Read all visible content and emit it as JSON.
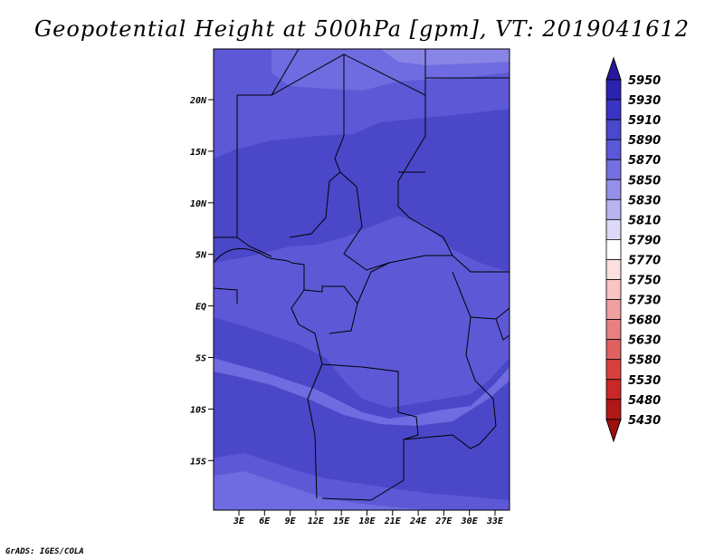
{
  "title": "Geopotential Height at 500hPa [gpm], VT: 2019041612",
  "credit": "GrADS: IGES/COLA",
  "map": {
    "lat_ticks": [
      "20N",
      "15N",
      "10N",
      "5N",
      "EQ",
      "5S",
      "10S",
      "15S"
    ],
    "lon_ticks": [
      "3E",
      "6E",
      "9E",
      "12E",
      "15E",
      "18E",
      "21E",
      "24E",
      "27E",
      "30E",
      "33E"
    ]
  },
  "colorbar": {
    "levels": [
      "5950",
      "5930",
      "5910",
      "5890",
      "5870",
      "5850",
      "5830",
      "5810",
      "5790",
      "5770",
      "5750",
      "5730",
      "5680",
      "5630",
      "5580",
      "5530",
      "5480",
      "5430"
    ],
    "colors": [
      "#2818a0",
      "#2c22b0",
      "#3a34c4",
      "#4a48cc",
      "#5a58d8",
      "#7470e0",
      "#9490ea",
      "#b8b4f2",
      "#dcdaf8",
      "#ffffff",
      "#fce0e0",
      "#f8c4c4",
      "#f0a0a0",
      "#e88080",
      "#e06060",
      "#d84040",
      "#c82828",
      "#b01818",
      "#a01010"
    ]
  },
  "fields": {
    "color_5890": "#4b47c9",
    "color_5870": "#5c58d6",
    "color_5850": "#6f6be0",
    "color_5830": "#8985e6"
  }
}
